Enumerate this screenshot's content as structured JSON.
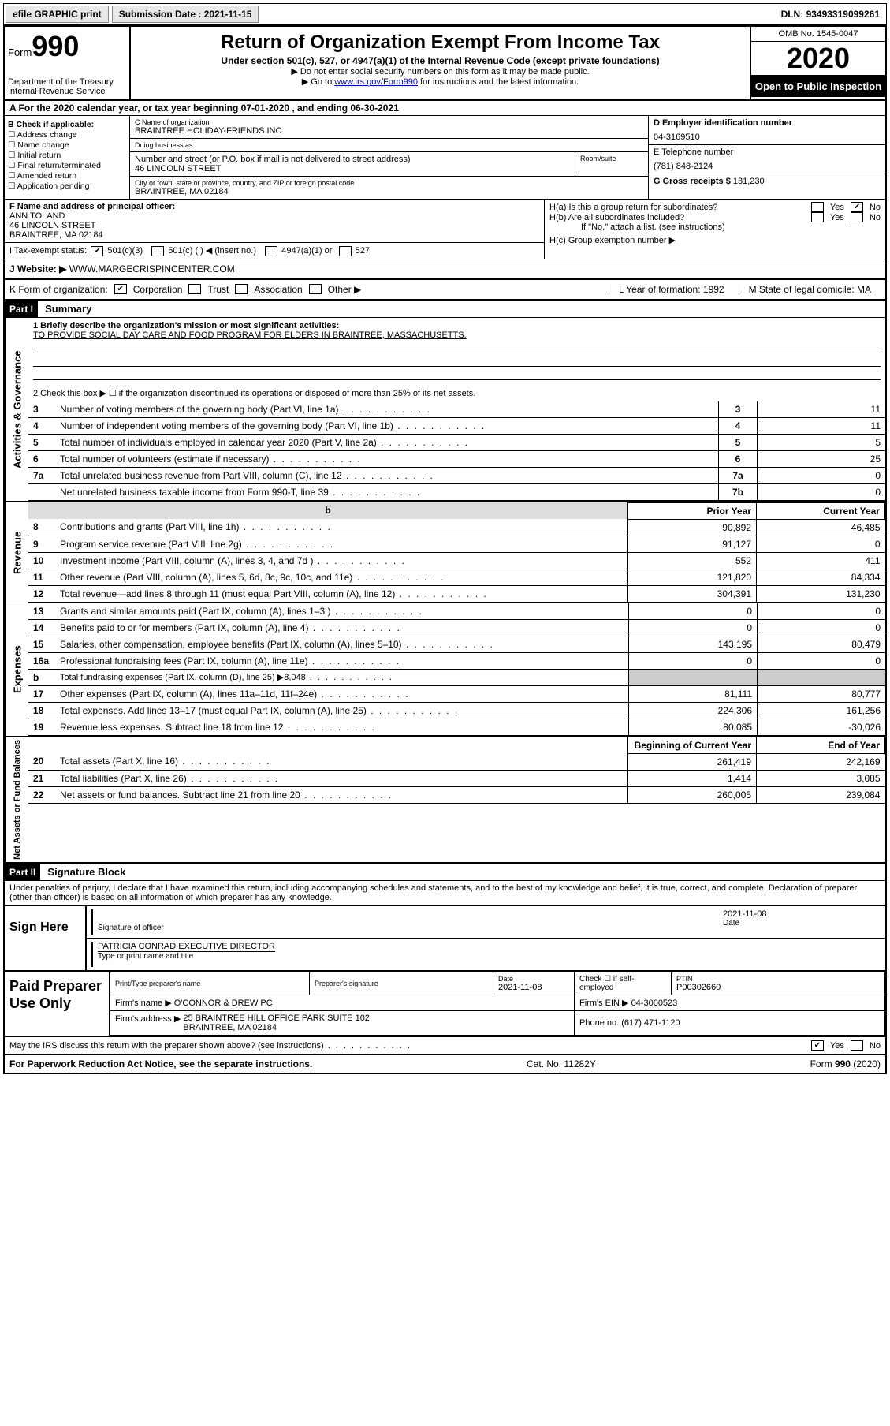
{
  "topbar": {
    "efile": "efile GRAPHIC print",
    "submission_label": "Submission Date : ",
    "submission_date": "2021-11-15",
    "dln_label": "DLN: ",
    "dln": "93493319099261"
  },
  "header": {
    "form_label": "Form",
    "form_number": "990",
    "dept": "Department of the Treasury\nInternal Revenue Service",
    "title": "Return of Organization Exempt From Income Tax",
    "subtitle": "Under section 501(c), 527, or 4947(a)(1) of the Internal Revenue Code (except private foundations)",
    "instr1": "▶ Do not enter social security numbers on this form as it may be made public.",
    "instr2_pre": "▶ Go to ",
    "instr2_link": "www.irs.gov/Form990",
    "instr2_post": " for instructions and the latest information.",
    "omb": "OMB No. 1545-0047",
    "year": "2020",
    "open": "Open to Public Inspection"
  },
  "rowA": "A For the 2020 calendar year, or tax year beginning 07-01-2020    , and ending 06-30-2021",
  "boxB": {
    "title": "B Check if applicable:",
    "items": [
      "Address change",
      "Name change",
      "Initial return",
      "Final return/terminated",
      "Amended return",
      "Application pending"
    ]
  },
  "boxC": {
    "name_label": "C Name of organization",
    "name": "BRAINTREE HOLIDAY-FRIENDS INC",
    "dba_label": "Doing business as",
    "dba": "",
    "street_label": "Number and street (or P.O. box if mail is not delivered to street address)",
    "street": "46 LINCOLN STREET",
    "suite_label": "Room/suite",
    "city_label": "City or town, state or province, country, and ZIP or foreign postal code",
    "city": "BRAINTREE, MA  02184"
  },
  "boxD": {
    "label": "D Employer identification number",
    "value": "04-3169510"
  },
  "boxE": {
    "label": "E Telephone number",
    "value": "(781) 848-2124"
  },
  "boxG": {
    "label": "G Gross receipts $ ",
    "value": "131,230"
  },
  "boxF": {
    "label": "F  Name and address of principal officer:",
    "name": "ANN TOLAND",
    "street": "46 LINCOLN STREET",
    "city": "BRAINTREE, MA  02184"
  },
  "boxH": {
    "ha": "H(a)  Is this a group return for subordinates?",
    "hb": "H(b)  Are all subordinates included?",
    "hb_note": "If \"No,\" attach a list. (see instructions)",
    "hc": "H(c)  Group exemption number ▶",
    "ha_no_checked": true
  },
  "boxI": {
    "label": "I  Tax-exempt status:",
    "c501c3_checked": true,
    "opts": [
      "501(c)(3)",
      "501(c) (   ) ◀ (insert no.)",
      "4947(a)(1) or",
      "527"
    ]
  },
  "boxJ": {
    "label": "J   Website: ▶",
    "value": "  WWW.MARGECRISPINCENTER.COM"
  },
  "boxK": {
    "label": "K Form of organization:",
    "corp_checked": true,
    "opts": [
      "Corporation",
      "Trust",
      "Association",
      "Other ▶"
    ],
    "L": "L Year of formation: 1992",
    "M": "M State of legal domicile: MA"
  },
  "part1": {
    "hdr": "Part I",
    "title": "Summary",
    "line1_label": "1   Briefly describe the organization's mission or most significant activities:",
    "line1_text": "TO PROVIDE SOCIAL DAY CARE AND FOOD PROGRAM FOR ELDERS IN BRAINTREE, MASSACHUSETTS.",
    "line2": "2    Check this box ▶ ☐  if the organization discontinued its operations or disposed of more than 25% of its net assets.",
    "gov_rows": [
      {
        "n": "3",
        "t": "Number of voting members of the governing body (Part VI, line 1a)",
        "box": "3",
        "v": "11"
      },
      {
        "n": "4",
        "t": "Number of independent voting members of the governing body (Part VI, line 1b)",
        "box": "4",
        "v": "11"
      },
      {
        "n": "5",
        "t": "Total number of individuals employed in calendar year 2020 (Part V, line 2a)",
        "box": "5",
        "v": "5"
      },
      {
        "n": "6",
        "t": "Total number of volunteers (estimate if necessary)",
        "box": "6",
        "v": "25"
      },
      {
        "n": "7a",
        "t": "Total unrelated business revenue from Part VIII, column (C), line 12",
        "box": "7a",
        "v": "0"
      },
      {
        "n": "",
        "t": "Net unrelated business taxable income from Form 990-T, line 39",
        "box": "7b",
        "v": "0"
      }
    ],
    "col_py": "Prior Year",
    "col_cy": "Current Year",
    "rev_rows": [
      {
        "n": "8",
        "t": "Contributions and grants (Part VIII, line 1h)",
        "py": "90,892",
        "cy": "46,485"
      },
      {
        "n": "9",
        "t": "Program service revenue (Part VIII, line 2g)",
        "py": "91,127",
        "cy": "0"
      },
      {
        "n": "10",
        "t": "Investment income (Part VIII, column (A), lines 3, 4, and 7d )",
        "py": "552",
        "cy": "411"
      },
      {
        "n": "11",
        "t": "Other revenue (Part VIII, column (A), lines 5, 6d, 8c, 9c, 10c, and 11e)",
        "py": "121,820",
        "cy": "84,334"
      },
      {
        "n": "12",
        "t": "Total revenue—add lines 8 through 11 (must equal Part VIII, column (A), line 12)",
        "py": "304,391",
        "cy": "131,230"
      }
    ],
    "exp_rows": [
      {
        "n": "13",
        "t": "Grants and similar amounts paid (Part IX, column (A), lines 1–3 )",
        "py": "0",
        "cy": "0"
      },
      {
        "n": "14",
        "t": "Benefits paid to or for members (Part IX, column (A), line 4)",
        "py": "0",
        "cy": "0"
      },
      {
        "n": "15",
        "t": "Salaries, other compensation, employee benefits (Part IX, column (A), lines 5–10)",
        "py": "143,195",
        "cy": "80,479"
      },
      {
        "n": "16a",
        "t": "Professional fundraising fees (Part IX, column (A), line 11e)",
        "py": "0",
        "cy": "0"
      },
      {
        "n": "b",
        "t": "Total fundraising expenses (Part IX, column (D), line 25) ▶8,048",
        "py": "",
        "cy": ""
      },
      {
        "n": "17",
        "t": "Other expenses (Part IX, column (A), lines 11a–11d, 11f–24e)",
        "py": "81,111",
        "cy": "80,777"
      },
      {
        "n": "18",
        "t": "Total expenses. Add lines 13–17 (must equal Part IX, column (A), line 25)",
        "py": "224,306",
        "cy": "161,256"
      },
      {
        "n": "19",
        "t": "Revenue less expenses. Subtract line 18 from line 12",
        "py": "80,085",
        "cy": "-30,026"
      }
    ],
    "na_hdr_py": "Beginning of Current Year",
    "na_hdr_cy": "End of Year",
    "na_rows": [
      {
        "n": "20",
        "t": "Total assets (Part X, line 16)",
        "py": "261,419",
        "cy": "242,169"
      },
      {
        "n": "21",
        "t": "Total liabilities (Part X, line 26)",
        "py": "1,414",
        "cy": "3,085"
      },
      {
        "n": "22",
        "t": "Net assets or fund balances. Subtract line 21 from line 20",
        "py": "260,005",
        "cy": "239,084"
      }
    ]
  },
  "part2": {
    "hdr": "Part II",
    "title": "Signature Block",
    "decl": "Under penalties of perjury, I declare that I have examined this return, including accompanying schedules and statements, and to the best of my knowledge and belief, it is true, correct, and complete. Declaration of preparer (other than officer) is based on all information of which preparer has any knowledge.",
    "sign_here": "Sign Here",
    "sig_officer": "Signature of officer",
    "sig_date_label": "Date",
    "sig_date": "2021-11-08",
    "sig_name": "PATRICIA CONRAD  EXECUTIVE DIRECTOR",
    "sig_name_label": "Type or print name and title",
    "paid": "Paid Preparer Use Only",
    "prep_name_label": "Print/Type preparer's name",
    "prep_name": "",
    "prep_sig_label": "Preparer's signature",
    "prep_date_label": "Date",
    "prep_date": "2021-11-08",
    "prep_check": "Check ☐ if self-employed",
    "ptin_label": "PTIN",
    "ptin": "P00302660",
    "firm_name_label": "Firm's name      ▶",
    "firm_name": "O'CONNOR & DREW PC",
    "firm_ein_label": "Firm's EIN ▶",
    "firm_ein": "04-3000523",
    "firm_addr_label": "Firm's address ▶",
    "firm_addr": "25 BRAINTREE HILL OFFICE PARK SUITE 102\nBRAINTREE, MA  02184",
    "phone_label": "Phone no.",
    "phone": "(617) 471-1120",
    "discuss": "May the IRS discuss this return with the preparer shown above? (see instructions)",
    "discuss_yes_checked": true
  },
  "footer": {
    "pra": "For Paperwork Reduction Act Notice, see the separate instructions.",
    "cat": "Cat. No. 11282Y",
    "form": "Form 990 (2020)"
  }
}
